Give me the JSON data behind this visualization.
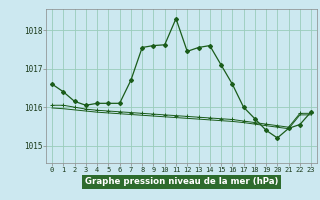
{
  "title": "Graphe pression niveau de la mer (hPa)",
  "background_color": "#cce8f0",
  "grid_color": "#99ccbb",
  "line_color": "#1a5c1a",
  "xlabel_bg": "#2d6b2d",
  "xlabel_color": "#ffffff",
  "ylim": [
    1014.55,
    1018.55
  ],
  "yticks": [
    1015,
    1016,
    1017,
    1018
  ],
  "xlim": [
    -0.5,
    23.5
  ],
  "series1": [
    1016.6,
    1016.4,
    1016.15,
    1016.05,
    1016.1,
    1016.1,
    1016.1,
    1016.7,
    1017.55,
    1017.6,
    1017.62,
    1018.3,
    1017.45,
    1017.55,
    1017.6,
    1017.1,
    1016.6,
    1016.0,
    1015.7,
    1015.4,
    1015.2,
    1015.45,
    1015.55,
    1015.88
  ],
  "series2": [
    1016.05,
    1016.05,
    1016.0,
    1015.95,
    1015.92,
    1015.9,
    1015.88,
    1015.86,
    1015.84,
    1015.82,
    1015.8,
    1015.78,
    1015.76,
    1015.74,
    1015.72,
    1015.7,
    1015.68,
    1015.64,
    1015.6,
    1015.56,
    1015.52,
    1015.48,
    1015.84,
    1015.84
  ],
  "series3": [
    1015.98,
    1015.96,
    1015.93,
    1015.9,
    1015.87,
    1015.85,
    1015.83,
    1015.81,
    1015.79,
    1015.77,
    1015.75,
    1015.73,
    1015.71,
    1015.69,
    1015.67,
    1015.65,
    1015.63,
    1015.6,
    1015.56,
    1015.52,
    1015.48,
    1015.44,
    1015.8,
    1015.8
  ]
}
